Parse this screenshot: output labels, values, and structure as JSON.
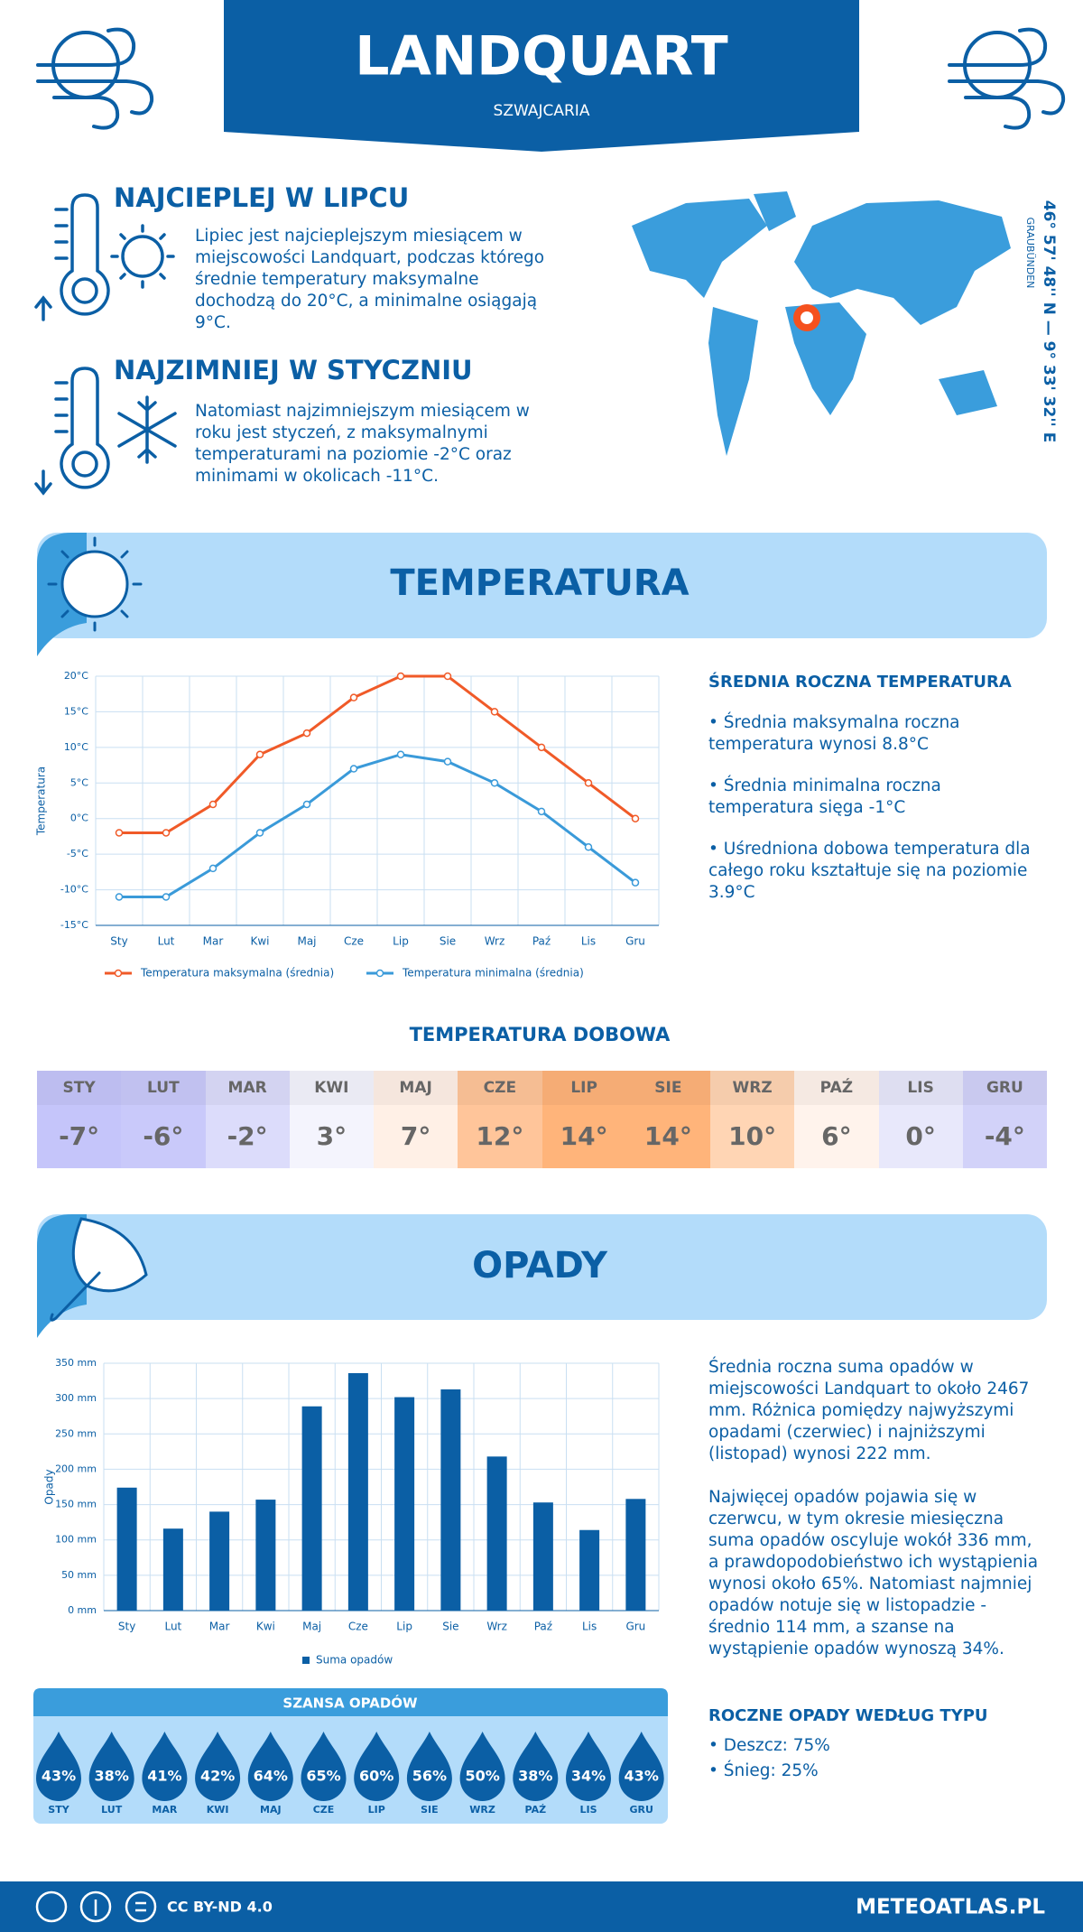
{
  "header": {
    "title": "LANDQUART",
    "subtitle": "SZWAJCARIA"
  },
  "warmest": {
    "title": "NAJCIEPLEJ W LIPCU",
    "text": "Lipiec jest najcieplejszym miesiącem w miejscowości Landquart, podczas którego średnie temperatury maksymalne dochodzą do 20°C, a minimalne osiągają 9°C."
  },
  "coldest": {
    "title": "NAJZIMNIEJ W STYCZNIU",
    "text": "Natomiast najzimniejszym miesiącem w roku jest styczeń, z maksymalnymi temperaturami na poziomie -2°C oraz minimami w okolicach -11°C."
  },
  "location": {
    "coordinates": "46° 57' 48'' N — 9° 33' 32'' E",
    "region": "GRAUBÜNDEN"
  },
  "temperature_section": {
    "title": "TEMPERATURA",
    "summary_title": "ŚREDNIA ROCZNA TEMPERATURA",
    "bullets": [
      "• Średnia maksymalna roczna temperatura wynosi 8.8°C",
      "• Średnia minimalna roczna temperatura sięga -1°C",
      "• Uśredniona dobowa temperatura dla całego roku kształtuje się na poziomie 3.9°C"
    ]
  },
  "chart_data": [
    {
      "type": "line",
      "y_label": "Temperatura",
      "categories": [
        "Sty",
        "Lut",
        "Mar",
        "Kwi",
        "Maj",
        "Cze",
        "Lip",
        "Sie",
        "Wrz",
        "Paź",
        "Lis",
        "Gru"
      ],
      "series": [
        {
          "name": "Temperatura maksymalna (średnia)",
          "color": "#f05a28",
          "values": [
            -2,
            -2,
            2,
            9,
            12,
            17,
            20,
            20,
            15,
            10,
            5,
            0
          ]
        },
        {
          "name": "Temperatura minimalna (średnia)",
          "color": "#3a9ad9",
          "values": [
            -11,
            -11,
            -7,
            -2,
            2,
            7,
            9,
            8,
            5,
            1,
            -4,
            -9
          ]
        }
      ],
      "ylim": [
        -15,
        20
      ],
      "yticks": [
        {
          "value": -15,
          "label": "-15°C"
        },
        {
          "value": -10,
          "label": "-10°C"
        },
        {
          "value": -5,
          "label": "-5°C"
        },
        {
          "value": 0,
          "label": "0°C"
        },
        {
          "value": 5,
          "label": "5°C"
        },
        {
          "value": 10,
          "label": "10°C"
        },
        {
          "value": 15,
          "label": "15°C"
        },
        {
          "value": 20,
          "label": "20°C"
        }
      ],
      "grid": true
    },
    {
      "type": "bar",
      "y_label": "Opady",
      "categories": [
        "Sty",
        "Lut",
        "Mar",
        "Kwi",
        "Maj",
        "Cze",
        "Lip",
        "Sie",
        "Wrz",
        "Paź",
        "Lis",
        "Gru"
      ],
      "series": [
        {
          "name": "Suma opadów",
          "color": "#0b5fa5",
          "values": [
            174,
            116,
            140,
            157,
            289,
            336,
            302,
            313,
            218,
            153,
            114,
            158
          ]
        }
      ],
      "ylim": [
        0,
        350
      ],
      "yticks": [
        {
          "value": 0,
          "label": "0 mm"
        },
        {
          "value": 50,
          "label": "50 mm"
        },
        {
          "value": 100,
          "label": "100 mm"
        },
        {
          "value": 150,
          "label": "150 mm"
        },
        {
          "value": 200,
          "label": "200 mm"
        },
        {
          "value": 250,
          "label": "250 mm"
        },
        {
          "value": 300,
          "label": "300 mm"
        },
        {
          "value": 350,
          "label": "350 mm"
        }
      ],
      "grid": true
    }
  ],
  "daily": {
    "title": "TEMPERATURA DOBOWA",
    "months": [
      "STY",
      "LUT",
      "MAR",
      "KWI",
      "MAJ",
      "CZE",
      "LIP",
      "SIE",
      "WRZ",
      "PAŹ",
      "LIS",
      "GRU"
    ],
    "values": [
      "-7°",
      "-6°",
      "-2°",
      "3°",
      "7°",
      "12°",
      "14°",
      "14°",
      "10°",
      "6°",
      "0°",
      "-4°"
    ],
    "colors": [
      "#c5c5fa",
      "#c9c9fa",
      "#dcdcfb",
      "#f4f4fd",
      "#fff0e6",
      "#ffc59a",
      "#ffb47a",
      "#ffb47a",
      "#ffd5b4",
      "#fff3ec",
      "#e8e8fb",
      "#d2d2f9"
    ]
  },
  "precipitation_section": {
    "title": "OPADY",
    "paragraphs": [
      "Średnia roczna suma opadów w miejscowości Landquart to około 2467 mm. Różnica pomiędzy najwyższymi opadami (czerwiec) i najniższymi (listopad) wynosi 222 mm.",
      "Najwięcej opadów pojawia się w czerwcu, w tym okresie miesięczna suma opadów oscyluje wokół 336 mm, a prawdopodobieństwo ich wystąpienia wynosi około 65%. Natomiast najmniej opadów notuje się w listopadzie - średnio 114 mm, a szanse na wystąpienie opadów wynoszą 34%."
    ]
  },
  "precip_chance": {
    "title": "SZANSA OPADÓW",
    "months": [
      "STY",
      "LUT",
      "MAR",
      "KWI",
      "MAJ",
      "CZE",
      "LIP",
      "SIE",
      "WRZ",
      "PAŹ",
      "LIS",
      "GRU"
    ],
    "values": [
      "43%",
      "38%",
      "41%",
      "42%",
      "64%",
      "65%",
      "60%",
      "56%",
      "50%",
      "38%",
      "34%",
      "43%"
    ]
  },
  "precip_types": {
    "title": "ROCZNE OPADY WEDŁUG TYPU",
    "items": [
      "• Deszcz: 75%",
      "• Śnieg: 25%"
    ]
  },
  "footer": {
    "license": "CC BY-ND 4.0",
    "site": "METEOATLAS.PL"
  }
}
